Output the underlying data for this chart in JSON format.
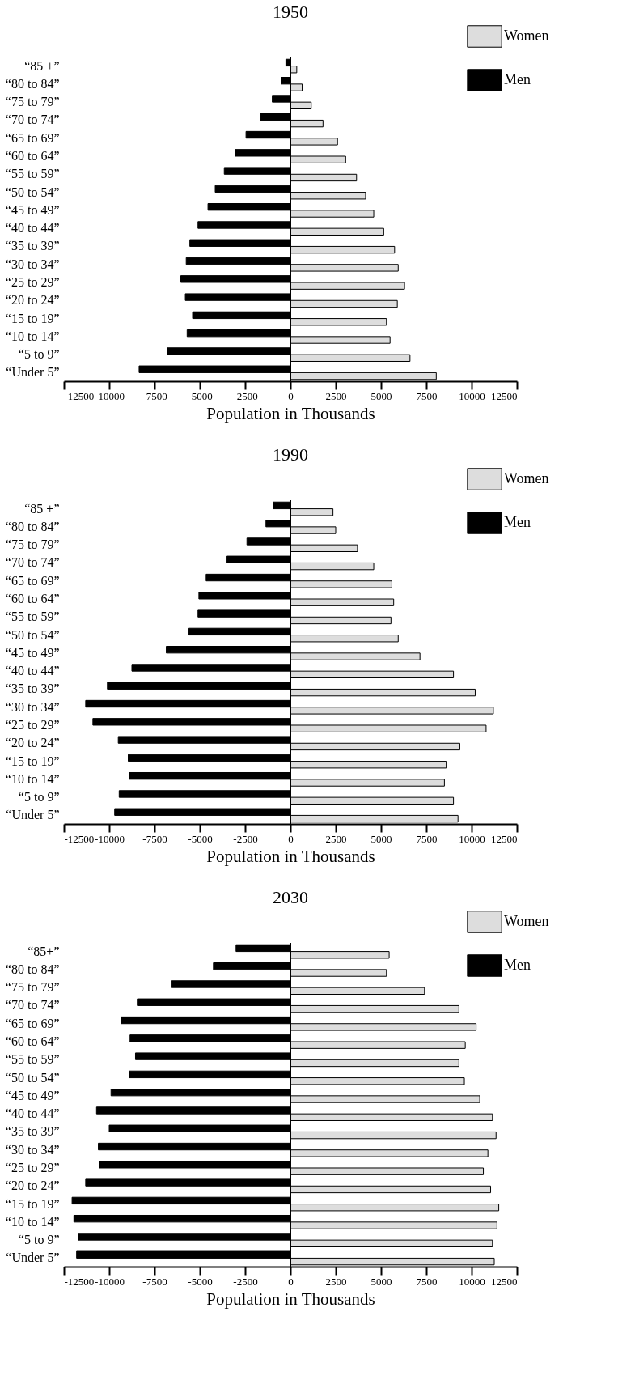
{
  "chart_data": [
    {
      "type": "bar",
      "orientation": "horizontal",
      "title": "1950",
      "xlabel": "Population in Thousands",
      "legend": "top right",
      "grid": false,
      "categories": [
        "“85 +”",
        "“80 to 84”",
        "“75 to 79”",
        "“70 to 74”",
        "“65 to 69”",
        "“60 to 64”",
        "“55 to 59”",
        "“50 to 54”",
        "“45 to 49”",
        "“40 to 44”",
        "“35 to 39”",
        "“30 to 34”",
        "“25 to 29”",
        "“20 to 24”",
        "“15 to 19”",
        "“10 to 14”",
        "“5 to 9”",
        "“Under 5”"
      ],
      "series": [
        {
          "name": "Women",
          "color": "#dddddd",
          "values": [
            350,
            650,
            1150,
            1800,
            2600,
            3050,
            3650,
            4150,
            4600,
            5150,
            5750,
            5950,
            6300,
            5900,
            5300,
            5500,
            6600,
            8050
          ]
        },
        {
          "name": "Men",
          "color": "#000000",
          "values": [
            -250,
            -500,
            -1000,
            -1650,
            -2450,
            -3050,
            -3650,
            -4150,
            -4550,
            -5100,
            -5550,
            -5750,
            -6050,
            -5800,
            -5400,
            -5700,
            -6800,
            -8350
          ]
        }
      ],
      "xlim": [
        -12500,
        12500
      ],
      "xticks": [
        -12500,
        -10000,
        -7500,
        -5000,
        -2500,
        0,
        2500,
        5000,
        7500,
        10000,
        12500
      ],
      "ref_lines": [
        {
          "axis": "x",
          "value": 0
        }
      ]
    },
    {
      "type": "bar",
      "orientation": "horizontal",
      "title": "1990",
      "xlabel": "Population in Thousands",
      "legend": "top right",
      "grid": false,
      "categories": [
        "“85 +”",
        "“80 to 84”",
        "“75 to 79”",
        "“70 to 74”",
        "“65 to 69”",
        "“60 to 64”",
        "“55 to 59”",
        "“50 to 54”",
        "“45 to 49”",
        "“40 to 44”",
        "“35 to 39”",
        "“30 to 34”",
        "“25 to 29”",
        "“20 to 24”",
        "“15 to 19”",
        "“10 to 14”",
        "“5 to 9”",
        "“Under 5”"
      ],
      "series": [
        {
          "name": "Women",
          "color": "#dddddd",
          "values": [
            2350,
            2500,
            3700,
            4600,
            5600,
            5700,
            5550,
            5950,
            7150,
            9000,
            10200,
            11200,
            10800,
            9350,
            8600,
            8500,
            9000,
            9250
          ]
        },
        {
          "name": "Men",
          "color": "#000000",
          "values": [
            -950,
            -1350,
            -2400,
            -3500,
            -4650,
            -5050,
            -5100,
            -5600,
            -6850,
            -8750,
            -10100,
            -11300,
            -10900,
            -9500,
            -8950,
            -8900,
            -9450,
            -9700
          ]
        }
      ],
      "xlim": [
        -12500,
        12500
      ],
      "xticks": [
        -12500,
        -10000,
        -7500,
        -5000,
        -2500,
        0,
        2500,
        5000,
        7500,
        10000,
        12500
      ],
      "ref_lines": [
        {
          "axis": "x",
          "value": 0
        }
      ]
    },
    {
      "type": "bar",
      "orientation": "horizontal",
      "title": "2030",
      "xlabel": "Population in Thousands",
      "legend": "top right",
      "grid": false,
      "categories": [
        "“85+”",
        "“80 to 84”",
        "“75 to 79”",
        "“70 to 74”",
        "“65 to 69”",
        "“60 to 64”",
        "“55 to 59”",
        "“50 to 54”",
        "“45 to 49”",
        "“40 to 44”",
        "“35 to 39”",
        "“30 to 34”",
        "“25 to 29”",
        "“20 to 24”",
        "“15 to 19”",
        "“10 to 14”",
        "“5 to 9”",
        "“Under 5”"
      ],
      "series": [
        {
          "name": "Women",
          "color": "#dddddd",
          "values": [
            5450,
            5300,
            7400,
            9300,
            10250,
            9650,
            9300,
            9600,
            10450,
            11150,
            11350,
            10900,
            10650,
            11050,
            11500,
            11400,
            11150,
            11250
          ]
        },
        {
          "name": "Men",
          "color": "#000000",
          "values": [
            -3000,
            -4250,
            -6550,
            -8450,
            -9350,
            -8850,
            -8550,
            -8900,
            -9900,
            -10700,
            -10000,
            -10600,
            -10550,
            -11300,
            -12050,
            -11950,
            -11700,
            -11800
          ]
        }
      ],
      "xlim": [
        -12500,
        12500
      ],
      "xticks": [
        -12500,
        -10000,
        -7500,
        -5000,
        -2500,
        0,
        2500,
        5000,
        7500,
        10000,
        12500
      ],
      "ref_lines": [
        {
          "axis": "x",
          "value": 0
        }
      ]
    }
  ]
}
